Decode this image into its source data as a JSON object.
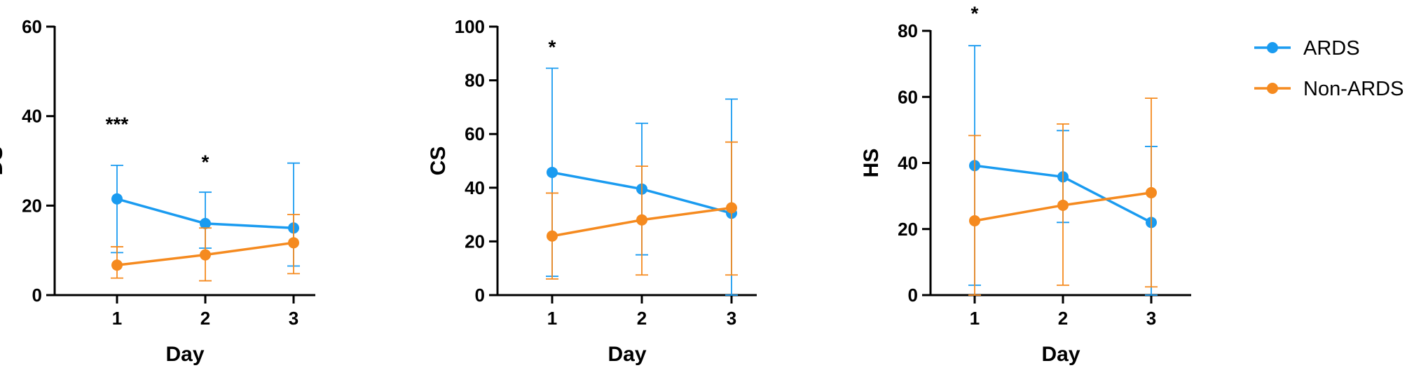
{
  "colors": {
    "ARDS": "#1A9BF0",
    "Non-ARDS": "#F58A1F"
  },
  "legend": {
    "position": "top-right",
    "items": [
      "ARDS",
      "Non-ARDS"
    ]
  },
  "chart_data": [
    {
      "type": "line",
      "xlabel": "Day",
      "ylabel": "DS",
      "x": [
        1,
        2,
        3
      ],
      "ylim": [
        0,
        60
      ],
      "yticks": [
        0,
        20,
        40,
        60
      ],
      "grid": false,
      "series": [
        {
          "name": "ARDS",
          "values": [
            21.5,
            16,
            15
          ],
          "err_low": [
            9.5,
            10.5,
            6.5
          ],
          "err_high": [
            29,
            23,
            29.5
          ]
        },
        {
          "name": "Non-ARDS",
          "values": [
            6.7,
            9,
            11.7
          ],
          "err_low": [
            3.8,
            3.2,
            4.8
          ],
          "err_high": [
            10.8,
            15,
            18
          ]
        }
      ],
      "annotations": [
        {
          "x": 1,
          "text": "***",
          "y": 38
        },
        {
          "x": 2,
          "text": "*",
          "y": 29.5
        }
      ]
    },
    {
      "type": "line",
      "xlabel": "Day",
      "ylabel": "CS",
      "x": [
        1,
        2,
        3
      ],
      "ylim": [
        0,
        100
      ],
      "yticks": [
        0,
        20,
        40,
        60,
        80,
        100
      ],
      "grid": false,
      "series": [
        {
          "name": "ARDS",
          "values": [
            45.7,
            39.5,
            30.5
          ],
          "err_low": [
            7,
            15,
            0
          ],
          "err_high": [
            84.5,
            64,
            73
          ]
        },
        {
          "name": "Non-ARDS",
          "values": [
            22,
            28,
            32.5
          ],
          "err_low": [
            6,
            7.5,
            7.5
          ],
          "err_high": [
            38,
            48,
            57
          ]
        }
      ],
      "annotations": [
        {
          "x": 1,
          "text": "*",
          "y": 92
        }
      ]
    },
    {
      "type": "line",
      "xlabel": "Day",
      "ylabel": "HS",
      "x": [
        1,
        2,
        3
      ],
      "ylim": [
        0,
        80
      ],
      "yticks": [
        0,
        20,
        40,
        60,
        80
      ],
      "grid": false,
      "series": [
        {
          "name": "ARDS",
          "values": [
            39.2,
            35.8,
            22
          ],
          "err_low": [
            3,
            22,
            0
          ],
          "err_high": [
            75.5,
            49.8,
            45
          ]
        },
        {
          "name": "Non-ARDS",
          "values": [
            22.5,
            27.2,
            31
          ],
          "err_low": [
            0,
            3,
            2.5
          ],
          "err_high": [
            48.3,
            51.8,
            59.6
          ]
        }
      ],
      "annotations": [
        {
          "x": 1,
          "text": "*",
          "y": 85
        }
      ]
    }
  ]
}
